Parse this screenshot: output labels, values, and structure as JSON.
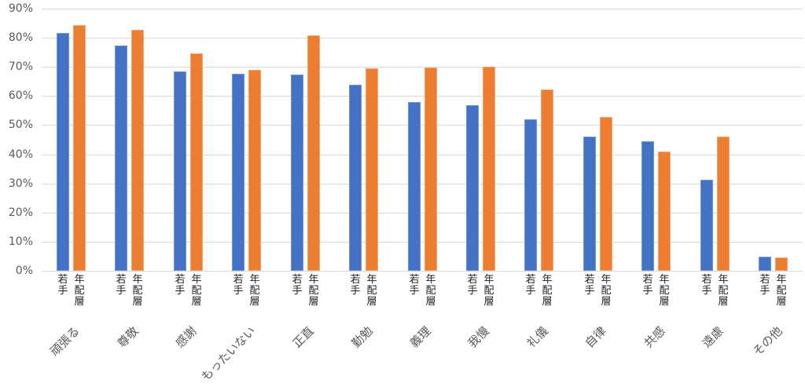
{
  "chart_data": {
    "type": "bar",
    "title": "",
    "xlabel": "",
    "ylabel": "",
    "ylim": [
      0,
      90
    ],
    "yticks": [
      "0%",
      "10%",
      "20%",
      "30%",
      "40%",
      "50%",
      "60%",
      "70%",
      "80%",
      "90%"
    ],
    "grid": true,
    "legend_position": "none (series labels under each bar)",
    "categories": [
      "頑張る",
      "尊敬",
      "感謝",
      "もったいない",
      "正直",
      "勤勉",
      "義理",
      "我慢",
      "礼儀",
      "自律",
      "共感",
      "遠慮",
      "その他"
    ],
    "series": [
      {
        "name": "若手",
        "color": "#4472c4",
        "values": [
          81.7,
          77.4,
          68.5,
          67.7,
          67.4,
          63.9,
          58.0,
          56.9,
          52.0,
          46.0,
          44.5,
          31.3,
          4.8
        ]
      },
      {
        "name": "年配層",
        "color": "#ed7d31",
        "values": [
          84.4,
          82.7,
          74.7,
          69.0,
          80.9,
          69.5,
          69.8,
          70.0,
          62.3,
          52.8,
          41.0,
          46.0,
          4.6
        ]
      }
    ]
  }
}
